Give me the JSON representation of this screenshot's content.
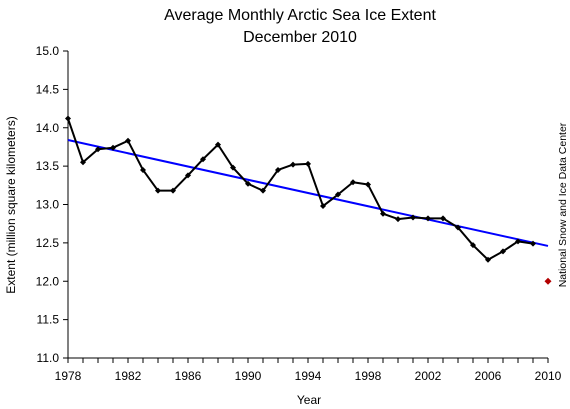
{
  "chart_data": {
    "type": "line",
    "title": "Average Monthly Arctic Sea Ice Extent",
    "subtitle": "December 2010",
    "xlabel": "Year",
    "ylabel": "Extent (million square kilometers)",
    "credit": "National Snow and Ice Data Center",
    "xlim": [
      1978,
      2010
    ],
    "ylim": [
      11.0,
      15.0
    ],
    "x_ticks": [
      1978,
      1982,
      1986,
      1990,
      1994,
      1998,
      2002,
      2006,
      2010
    ],
    "y_ticks": [
      "11.0",
      "11.5",
      "12.0",
      "12.5",
      "13.0",
      "13.5",
      "14.0",
      "14.5",
      "15.0"
    ],
    "grid": false,
    "legend": "none",
    "series": [
      {
        "color": "#000000",
        "x": [
          1978,
          1979,
          1980,
          1981,
          1982,
          1983,
          1984,
          1985,
          1986,
          1987,
          1988,
          1989,
          1990,
          1991,
          1992,
          1993,
          1994,
          1995,
          1996,
          1997,
          1998,
          1999,
          2000,
          2001,
          2002,
          2003,
          2004,
          2005,
          2006,
          2007,
          2008,
          2009
        ],
        "y": [
          14.12,
          13.55,
          13.72,
          13.74,
          13.83,
          13.45,
          13.18,
          13.18,
          13.38,
          13.59,
          13.78,
          13.48,
          13.27,
          13.18,
          13.45,
          13.52,
          13.53,
          12.98,
          13.13,
          13.29,
          13.26,
          12.88,
          12.81,
          12.83,
          12.82,
          12.82,
          12.7,
          12.47,
          12.28,
          12.39,
          12.52,
          12.49
        ]
      }
    ],
    "highlight_point": {
      "x": 2010,
      "y": 12.0,
      "color": "#b30000"
    },
    "trend_line": {
      "x": [
        1978,
        2010
      ],
      "y": [
        13.84,
        12.46
      ],
      "color": "#0000ff"
    }
  }
}
